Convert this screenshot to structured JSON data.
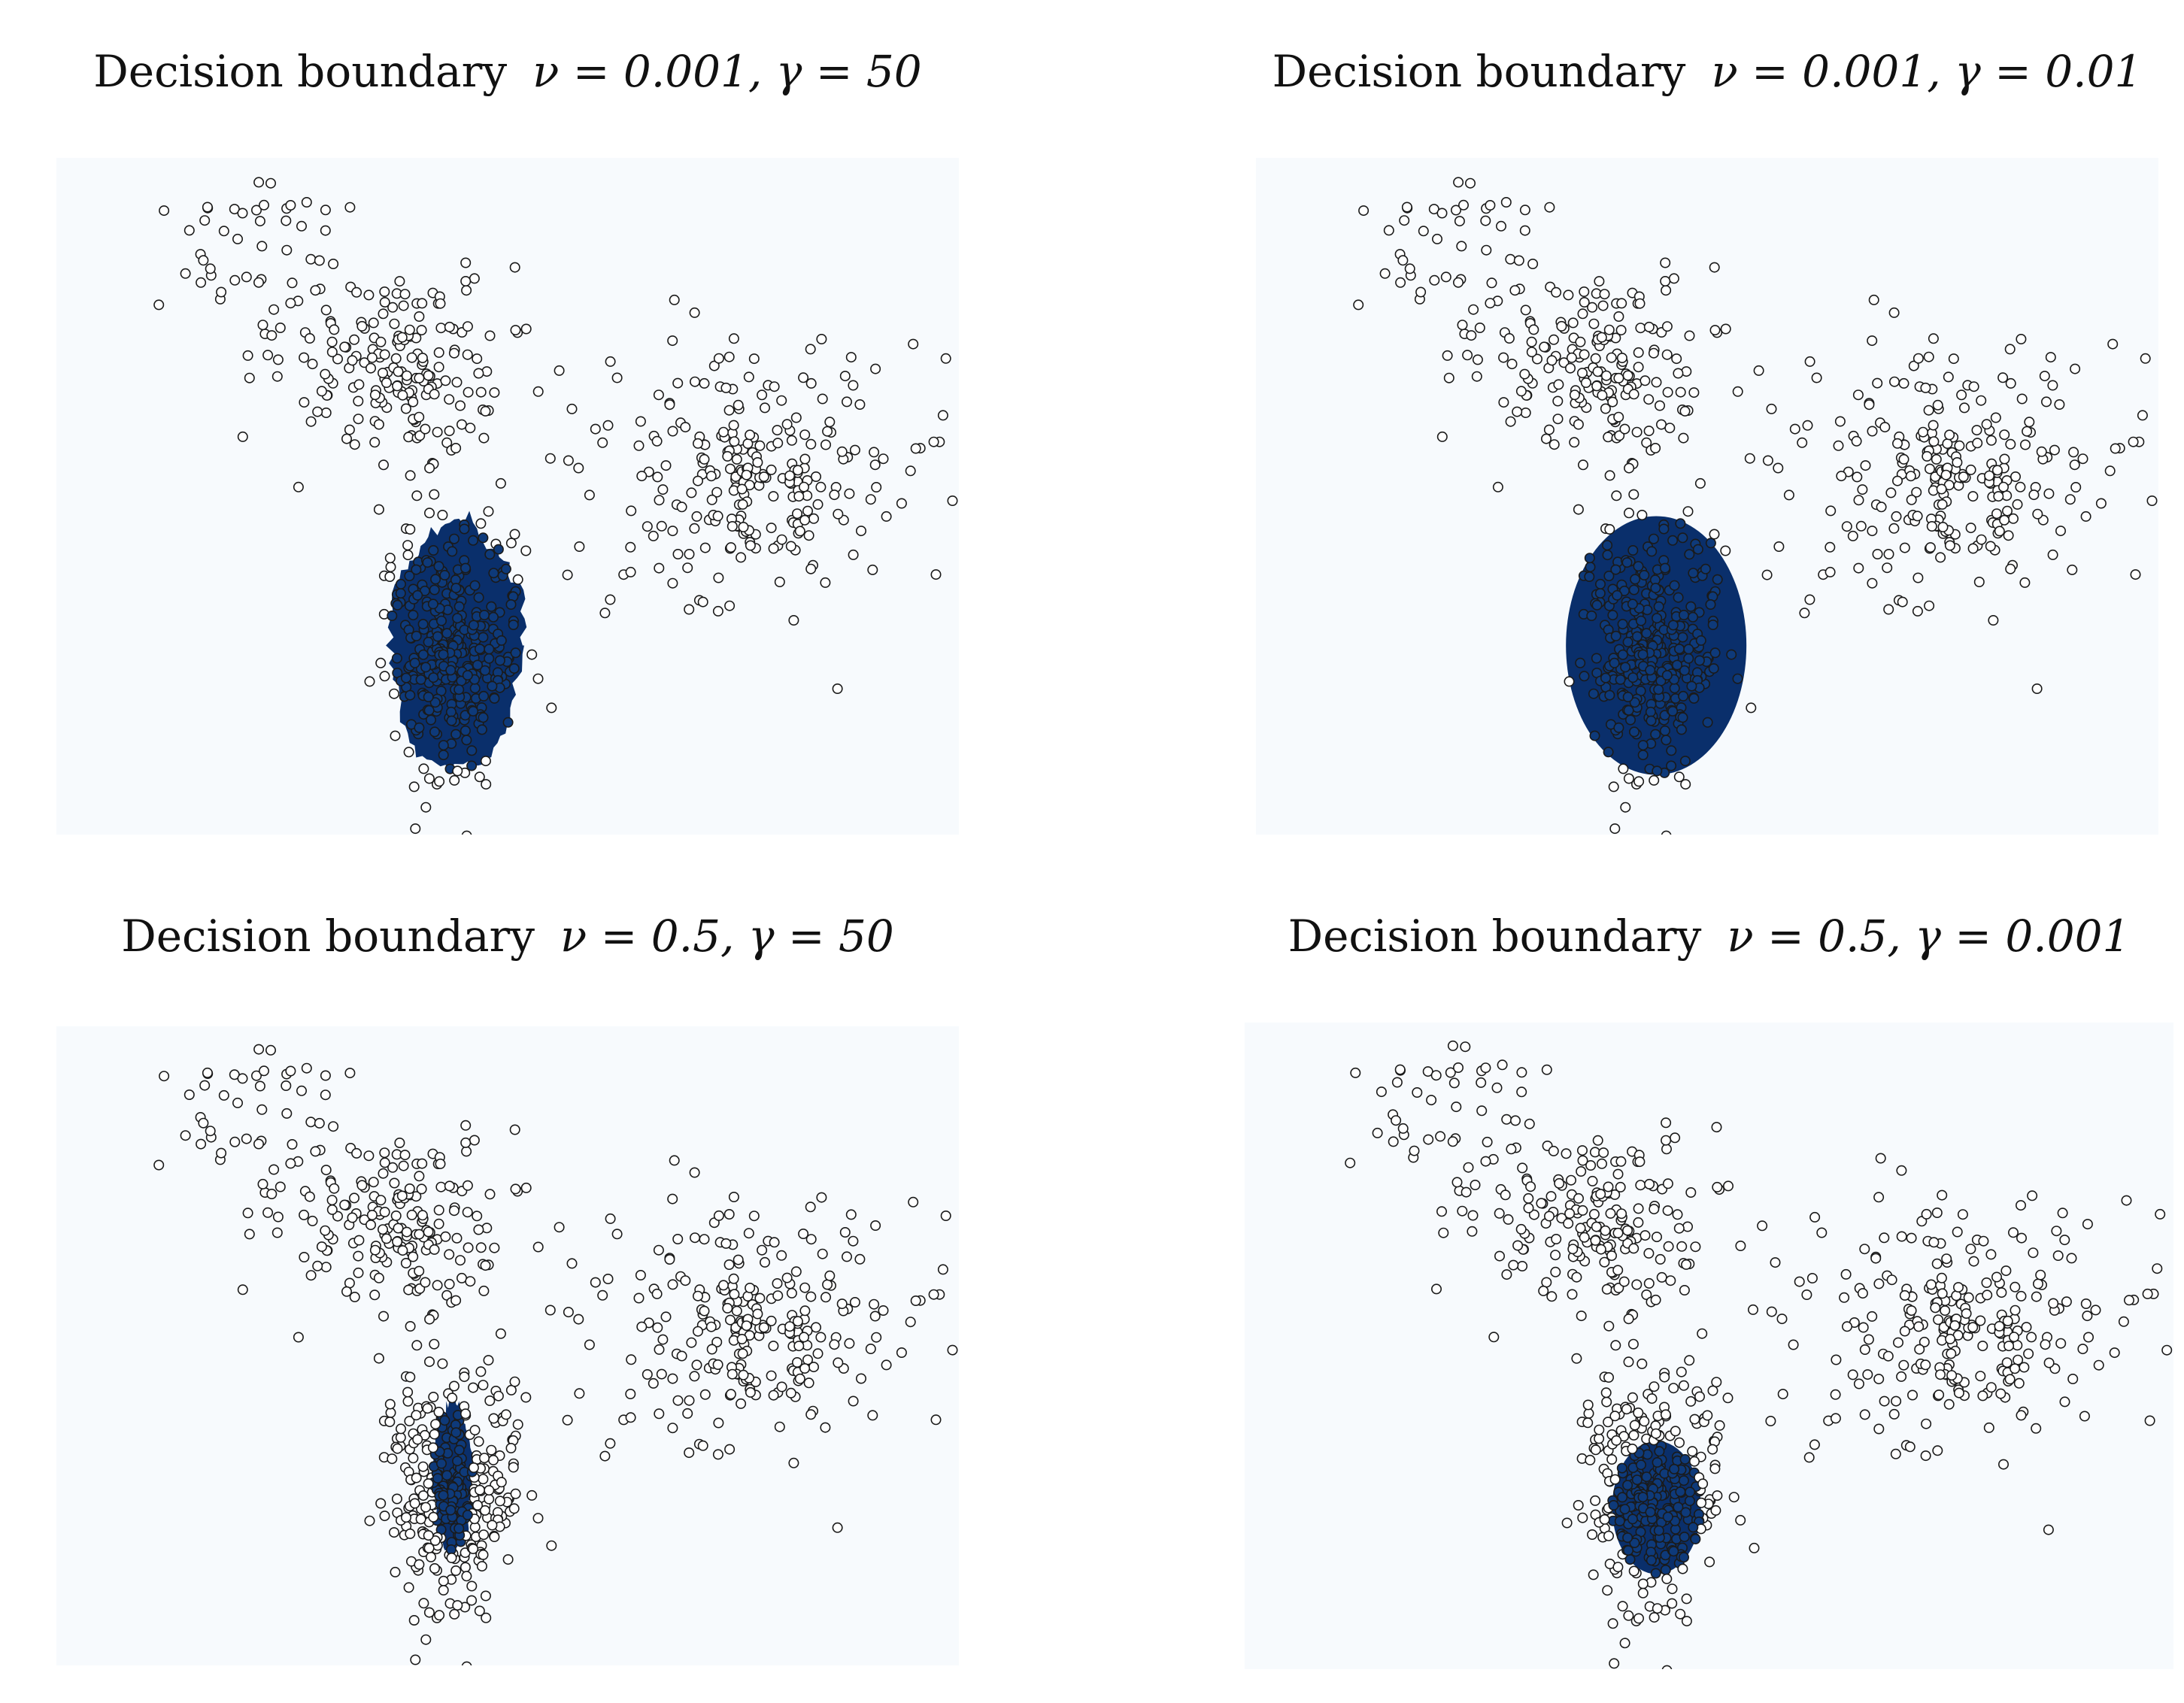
{
  "chart_data": [
    {
      "type": "scatter",
      "title": "Decision boundary",
      "params": "ν = 0.001,  γ = 50",
      "nu": 0.001,
      "gamma": 50,
      "boundary": {
        "shape": "irregular",
        "center": [
          4.6,
          -3.1
        ],
        "radii": [
          0.85,
          1.25
        ]
      },
      "grid": false,
      "legend": "none"
    },
    {
      "type": "scatter",
      "title": "Decision boundary",
      "params": "ν = 0.001,  γ = 0.01",
      "nu": 0.001,
      "gamma": 0.01,
      "boundary": {
        "shape": "ellipse",
        "center": [
          4.6,
          -3.1
        ],
        "radii": [
          1.15,
          1.3
        ]
      },
      "grid": false,
      "legend": "none"
    },
    {
      "type": "scatter",
      "title": "Decision boundary",
      "params": "ν = 0.5,  γ = 50",
      "nu": 0.5,
      "gamma": 50,
      "boundary": {
        "shape": "irregular",
        "center": [
          4.55,
          -3.0
        ],
        "radii": [
          0.25,
          0.8
        ]
      },
      "grid": false,
      "legend": "none"
    },
    {
      "type": "scatter",
      "title": "Decision boundary",
      "params": "ν = 0.5,  γ = 0.001",
      "nu": 0.5,
      "gamma": 0.001,
      "boundary": {
        "shape": "ellipse",
        "center": [
          4.6,
          -3.3
        ],
        "radii": [
          0.55,
          0.7
        ]
      },
      "grid": false,
      "legend": "none"
    }
  ],
  "colors": {
    "plot_bg": "#f7fafd",
    "boundary_fill": "#0a2f6b",
    "inlier_fill": "#0e3a7a",
    "marker_edge": "#1a1a1a"
  },
  "panels": [
    {
      "title": "Decision boundary",
      "params": "ν = 0.001,  γ = 50"
    },
    {
      "title": "Decision boundary",
      "params": "ν = 0.001,  γ = 0.01"
    },
    {
      "title": "Decision boundary",
      "params": "ν = 0.5,  γ = 50"
    },
    {
      "title": "Decision boundary",
      "params": "ν = 0.5,  γ = 0.001"
    }
  ]
}
